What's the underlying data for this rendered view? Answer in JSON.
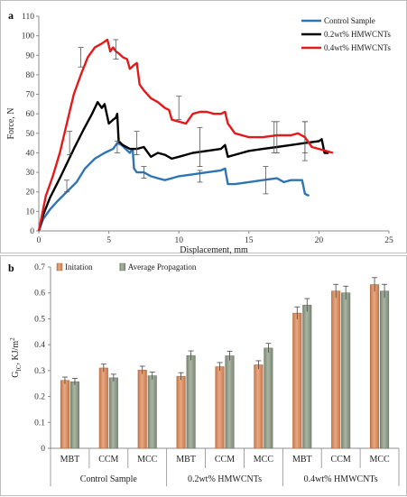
{
  "chart_data": [
    {
      "panel": "a",
      "type": "line",
      "xlabel": "Displacement, mm",
      "ylabel": "Force, N",
      "xlim": [
        0,
        25
      ],
      "ylim": [
        0,
        110
      ],
      "xticks": [
        0,
        5,
        10,
        15,
        20,
        25
      ],
      "yticks": [
        0,
        10,
        20,
        30,
        40,
        50,
        60,
        70,
        80,
        90,
        100,
        110
      ],
      "legend_position": "top-right",
      "series": [
        {
          "name": "Control Sample",
          "color": "#2e75b6",
          "points": [
            [
              0,
              0
            ],
            [
              0.3,
              6
            ],
            [
              0.8,
              11
            ],
            [
              1.3,
              15
            ],
            [
              2,
              20
            ],
            [
              2.7,
              25
            ],
            [
              3.3,
              32
            ],
            [
              4,
              37
            ],
            [
              4.7,
              40
            ],
            [
              5.3,
              42
            ],
            [
              5.6,
              45
            ],
            [
              5.9,
              44
            ],
            [
              6.2,
              42
            ],
            [
              6.5,
              40
            ],
            [
              6.7,
              42
            ],
            [
              6.8,
              32
            ],
            [
              7,
              30
            ],
            [
              7.5,
              30
            ],
            [
              8,
              28
            ],
            [
              8.5,
              27
            ],
            [
              9,
              26
            ],
            [
              9.5,
              27
            ],
            [
              10,
              28
            ],
            [
              11,
              29
            ],
            [
              12,
              30
            ],
            [
              13,
              31
            ],
            [
              13.3,
              32
            ],
            [
              13.5,
              24
            ],
            [
              14,
              24
            ],
            [
              15,
              25
            ],
            [
              16,
              26
            ],
            [
              17,
              27
            ],
            [
              17.5,
              25
            ],
            [
              18,
              26
            ],
            [
              18.8,
              26
            ],
            [
              19,
              19
            ],
            [
              19.3,
              18
            ]
          ],
          "error_bars": [
            [
              2,
              23,
              3
            ],
            [
              5.6,
              43,
              3
            ],
            [
              7.5,
              30,
              3
            ],
            [
              11.5,
              28,
              3
            ],
            [
              16.2,
              26,
              7
            ]
          ]
        },
        {
          "name": "0.2wt% HMWCNTs",
          "color": "#000000",
          "points": [
            [
              0,
              0
            ],
            [
              0.3,
              8
            ],
            [
              0.8,
              17
            ],
            [
              1.5,
              27
            ],
            [
              2.5,
              42
            ],
            [
              3.2,
              52
            ],
            [
              3.8,
              60
            ],
            [
              4.2,
              66
            ],
            [
              4.5,
              63
            ],
            [
              4.7,
              65
            ],
            [
              5,
              55
            ],
            [
              5.3,
              57
            ],
            [
              5.5,
              58
            ],
            [
              5.6,
              60
            ],
            [
              5.7,
              46
            ],
            [
              6,
              44
            ],
            [
              6.5,
              42
            ],
            [
              7,
              42
            ],
            [
              7.5,
              43
            ],
            [
              8,
              38
            ],
            [
              8.5,
              40
            ],
            [
              9,
              39
            ],
            [
              9.5,
              37
            ],
            [
              10,
              38
            ],
            [
              11,
              40
            ],
            [
              12,
              41
            ],
            [
              13,
              42
            ],
            [
              13.3,
              44
            ],
            [
              13.5,
              38
            ],
            [
              14,
              39
            ],
            [
              15,
              41
            ],
            [
              16,
              42
            ],
            [
              17,
              43
            ],
            [
              18,
              44
            ],
            [
              19,
              45
            ],
            [
              20,
              46
            ],
            [
              20.2,
              47
            ],
            [
              20.4,
              40
            ],
            [
              20.7,
              40
            ]
          ],
          "error_bars": [
            [
              2.2,
              45,
              6
            ],
            [
              7,
              45,
              6
            ],
            [
              11.5,
              43,
              10
            ],
            [
              17,
              48,
              8
            ],
            [
              19,
              48,
              8
            ]
          ]
        },
        {
          "name": "0.4wt% HMWCNTs",
          "color": "#e31a1c",
          "points": [
            [
              0,
              0
            ],
            [
              0.5,
              18
            ],
            [
              1,
              28
            ],
            [
              1.5,
              40
            ],
            [
              2,
              55
            ],
            [
              2.5,
              70
            ],
            [
              3,
              80
            ],
            [
              3.5,
              89
            ],
            [
              4,
              94
            ],
            [
              4.5,
              96
            ],
            [
              4.9,
              98
            ],
            [
              5.1,
              92
            ],
            [
              5.3,
              94
            ],
            [
              5.5,
              92
            ],
            [
              5.7,
              91
            ],
            [
              6,
              89
            ],
            [
              6.3,
              88
            ],
            [
              6.5,
              83
            ],
            [
              6.8,
              85
            ],
            [
              7,
              86
            ],
            [
              7.2,
              75
            ],
            [
              7.5,
              72
            ],
            [
              8,
              68
            ],
            [
              8.5,
              66
            ],
            [
              9,
              63
            ],
            [
              9.3,
              62
            ],
            [
              9.5,
              57
            ],
            [
              10,
              56
            ],
            [
              10.5,
              55
            ],
            [
              11,
              60
            ],
            [
              11.5,
              61
            ],
            [
              12,
              61
            ],
            [
              12.5,
              60
            ],
            [
              13,
              60
            ],
            [
              13.3,
              61
            ],
            [
              13.5,
              55
            ],
            [
              14,
              50
            ],
            [
              15,
              48
            ],
            [
              16,
              48
            ],
            [
              17,
              49
            ],
            [
              18,
              49
            ],
            [
              18.5,
              50
            ],
            [
              19,
              48
            ],
            [
              19.5,
              43
            ],
            [
              20,
              42
            ],
            [
              20.5,
              41
            ],
            [
              21,
              40
            ]
          ],
          "error_bars": [
            [
              3,
              89,
              5
            ],
            [
              5.5,
              93,
              5
            ],
            [
              10,
              63,
              6
            ],
            [
              16.8,
              48,
              8
            ],
            [
              19,
              46,
              10
            ]
          ]
        }
      ]
    },
    {
      "panel": "b",
      "type": "bar",
      "xlabel": "",
      "ylabel": "G",
      "ylabel_sub": "IC",
      "ylabel_unit": ", KJ/m",
      "ylabel_sup": "2",
      "ylim": [
        0,
        0.7
      ],
      "yticks": [
        "0",
        "0.1",
        "0.2",
        "0.3",
        "0.4",
        "0.5",
        "0.6",
        "0.7"
      ],
      "legend_position": "top-left",
      "categories": [
        "MBT",
        "CCM",
        "MCC",
        "MBT",
        "CCM",
        "MCC",
        "MBT",
        "CCM",
        "MCC"
      ],
      "groups": [
        "Control Sample",
        "0.2wt% HMWCNTs",
        "0.4wt% HMWCNTs"
      ],
      "series": [
        {
          "name": "Initation",
          "color": "#e8a882",
          "values": [
            0.262,
            0.31,
            0.302,
            0.278,
            0.315,
            0.322,
            0.522,
            0.607,
            0.632
          ],
          "errors": [
            0.013,
            0.015,
            0.015,
            0.014,
            0.016,
            0.016,
            0.024,
            0.026,
            0.027
          ]
        },
        {
          "name": "Average Propagation",
          "color": "#aab5a4",
          "values": [
            0.257,
            0.272,
            0.28,
            0.358,
            0.357,
            0.387,
            0.553,
            0.6,
            0.607
          ],
          "errors": [
            0.013,
            0.014,
            0.014,
            0.018,
            0.018,
            0.018,
            0.025,
            0.026,
            0.026
          ]
        }
      ]
    }
  ],
  "panels": {
    "a": "a",
    "b": "b"
  }
}
